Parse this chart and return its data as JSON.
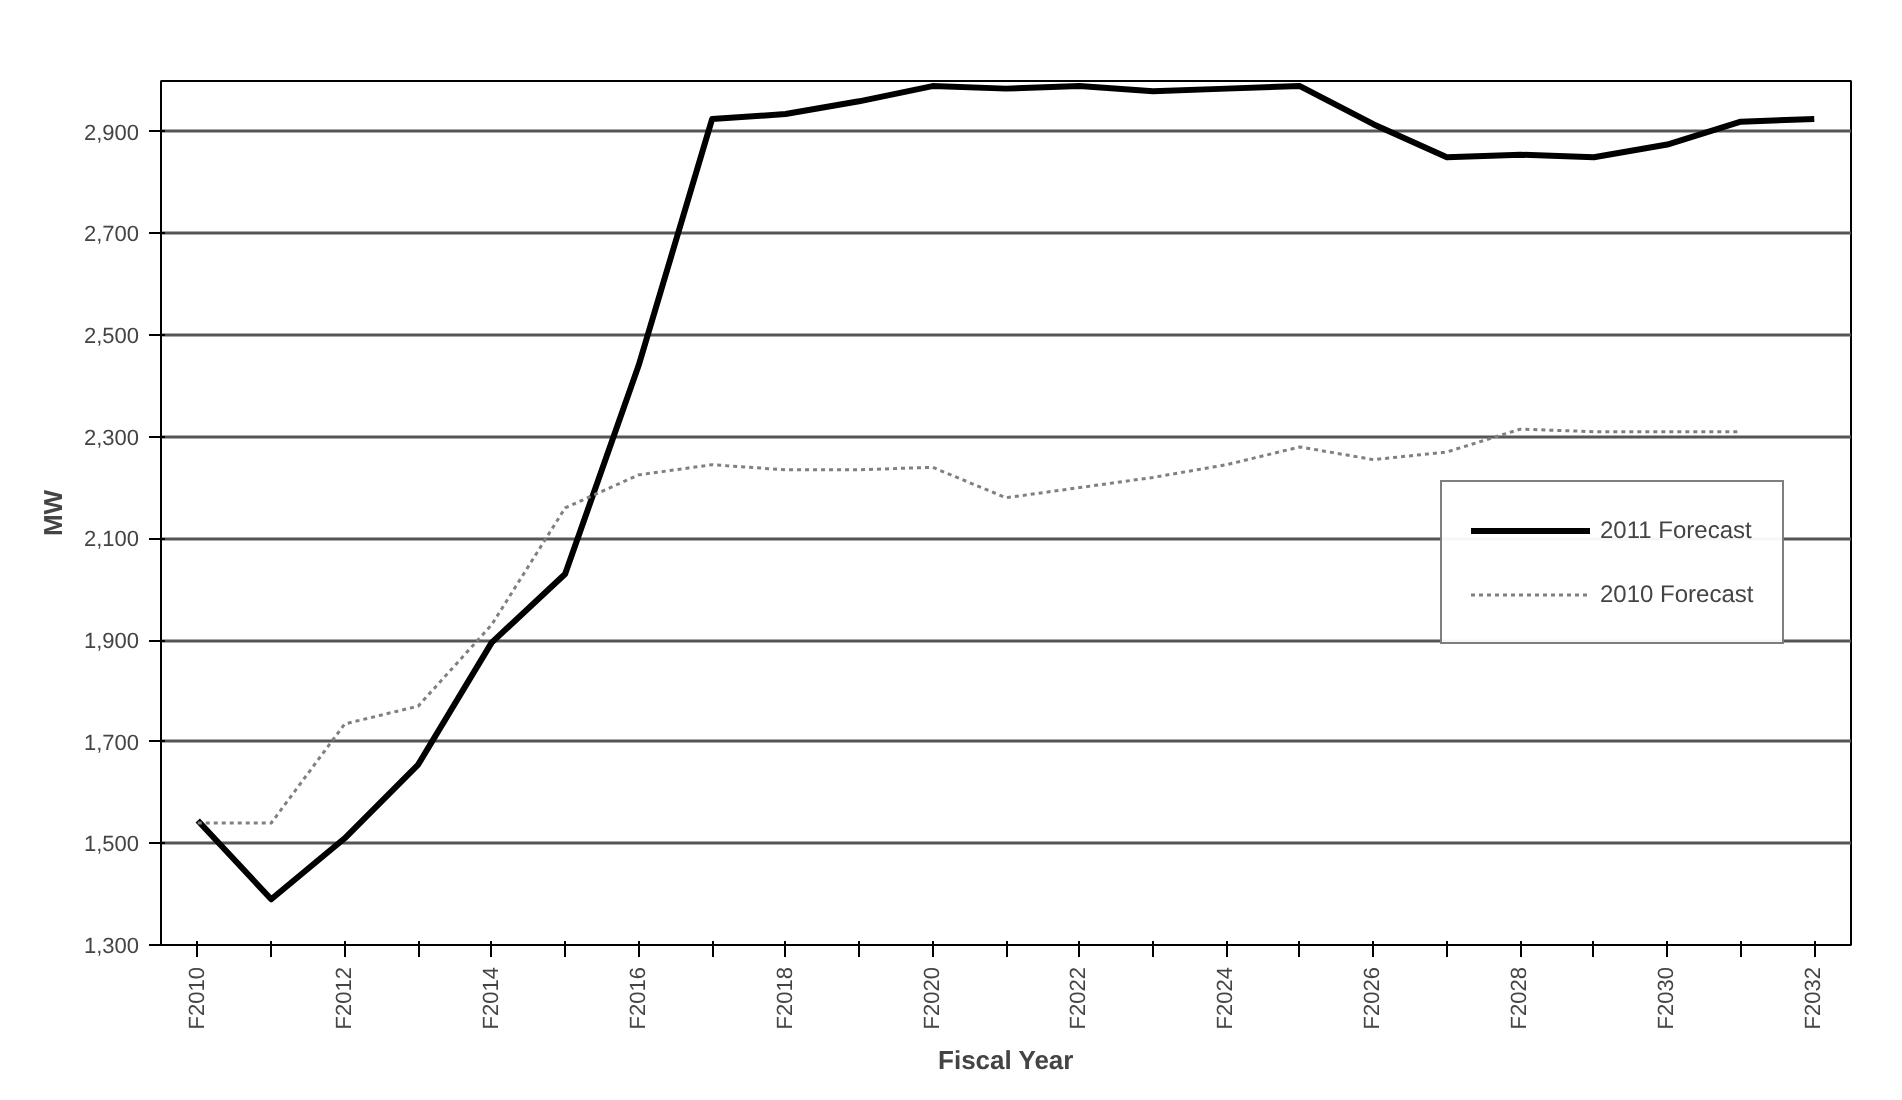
{
  "chart_data": {
    "type": "line",
    "xlabel": "Fiscal Year",
    "ylabel": "MW",
    "categories": [
      "F2010",
      null,
      "F2012",
      null,
      "F2014",
      null,
      "F2016",
      null,
      "F2018",
      null,
      "F2020",
      null,
      "F2022",
      null,
      "F2024",
      null,
      "F2026",
      null,
      "F2028",
      null,
      "F2030",
      null,
      "F2032"
    ],
    "series": [
      {
        "name": "2011 Forecast",
        "color": "#000000",
        "line_style": "solid",
        "values": [
          1545,
          1390,
          1510,
          1655,
          1895,
          2030,
          2440,
          2925,
          2935,
          2960,
          2990,
          2985,
          2990,
          2980,
          2985,
          2990,
          2915,
          2850,
          2855,
          2850,
          2875,
          2920,
          2925
        ]
      },
      {
        "name": "2010 Forecast",
        "color": "#808080",
        "line_style": "dotted",
        "values": [
          1540,
          1540,
          1735,
          1770,
          1930,
          2160,
          2225,
          2245,
          2235,
          2235,
          2240,
          2180,
          2200,
          2220,
          2245,
          2280,
          2255,
          2270,
          2315,
          2310,
          2310,
          2310,
          null
        ]
      }
    ],
    "ylim": [
      1300,
      3000
    ],
    "yticks": [
      {
        "value": 1300,
        "label": "1,300"
      },
      {
        "value": 1500,
        "label": "1,500"
      },
      {
        "value": 1700,
        "label": "1,700"
      },
      {
        "value": 1900,
        "label": "1,900"
      },
      {
        "value": 2100,
        "label": "2,100"
      },
      {
        "value": 2300,
        "label": "2,300"
      },
      {
        "value": 2500,
        "label": "2,500"
      },
      {
        "value": 2700,
        "label": "2,700"
      },
      {
        "value": 2900,
        "label": "2,900"
      }
    ],
    "grid": "y",
    "legend": "right",
    "marker": "none"
  }
}
